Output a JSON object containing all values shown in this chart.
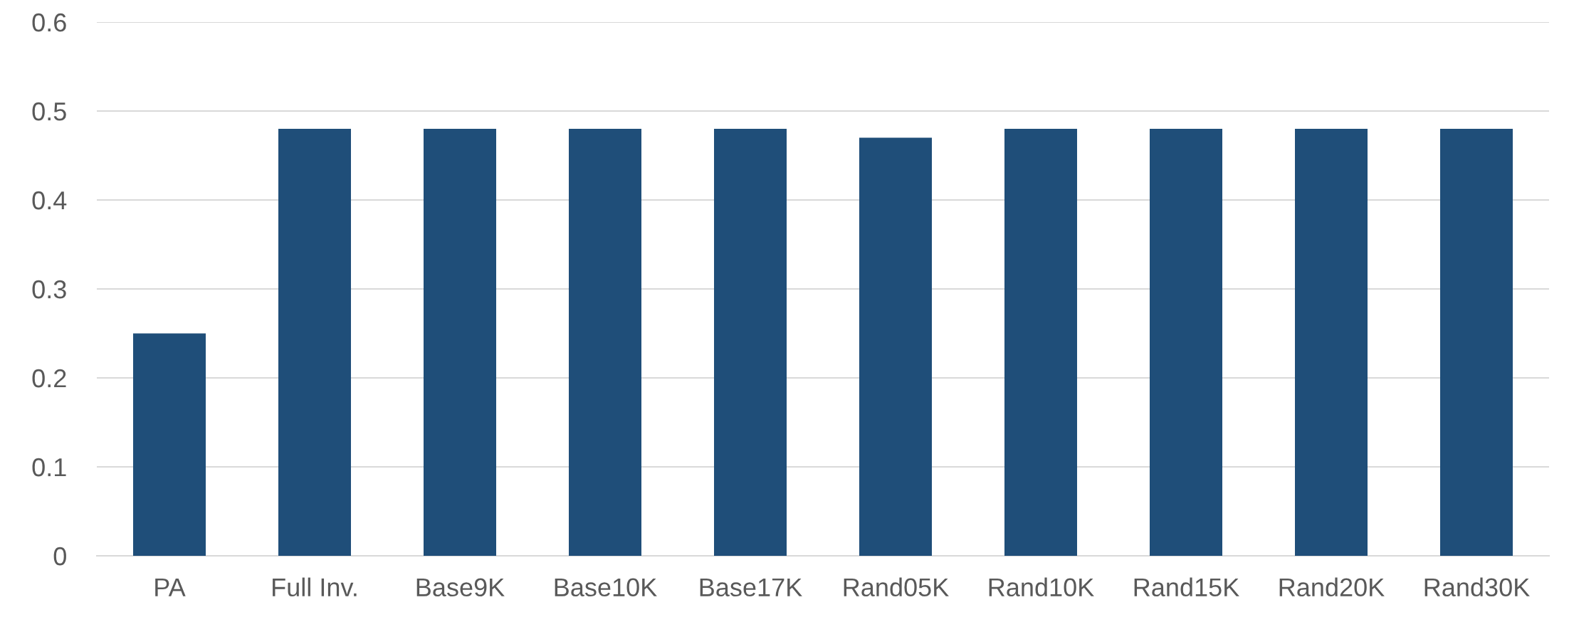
{
  "chart_data": {
    "type": "bar",
    "categories": [
      "PA",
      "Full Inv.",
      "Base9K",
      "Base10K",
      "Base17K",
      "Rand05K",
      "Rand10K",
      "Rand15K",
      "Rand20K",
      "Rand30K"
    ],
    "values": [
      0.25,
      0.48,
      0.48,
      0.48,
      0.48,
      0.47,
      0.48,
      0.48,
      0.48,
      0.48
    ],
    "color": "#1f4e79",
    "ylim": [
      0,
      0.6
    ],
    "yticks": [
      0,
      0.1,
      0.2,
      0.3,
      0.4,
      0.5,
      0.6
    ],
    "grid": "y"
  }
}
